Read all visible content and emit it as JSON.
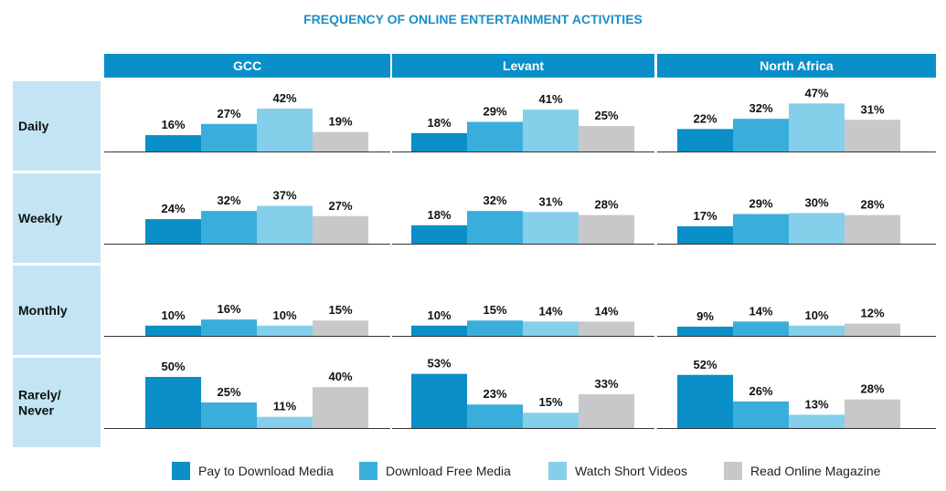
{
  "chart_data": {
    "type": "bar",
    "title": "FREQUENCY OF ONLINE ENTERTAINMENT ACTIVITIES",
    "regions": [
      "GCC",
      "Levant",
      "North Africa"
    ],
    "frequencies": [
      "Daily",
      "Weekly",
      "Monthly",
      "Rarely/ Never"
    ],
    "series": [
      {
        "name": "Pay to Download Media",
        "color": "#0a8fc8"
      },
      {
        "name": "Download Free Media",
        "color": "#3aaedb"
      },
      {
        "name": "Watch Short Videos",
        "color": "#85cfeb"
      },
      {
        "name": "Read Online Magazine",
        "color": "#c8c8ca"
      }
    ],
    "values": [
      [
        [
          16,
          27,
          42,
          19
        ],
        [
          18,
          29,
          41,
          25
        ],
        [
          22,
          32,
          47,
          31
        ]
      ],
      [
        [
          24,
          32,
          37,
          27
        ],
        [
          18,
          32,
          31,
          28
        ],
        [
          17,
          29,
          30,
          28
        ]
      ],
      [
        [
          10,
          16,
          10,
          15
        ],
        [
          10,
          15,
          14,
          14
        ],
        [
          9,
          14,
          10,
          12
        ]
      ],
      [
        [
          50,
          25,
          11,
          40
        ],
        [
          53,
          23,
          15,
          33
        ],
        [
          52,
          26,
          13,
          28
        ]
      ]
    ],
    "value_suffix": "%",
    "colors": {
      "header_bg": "#0a8fc8",
      "row_label_bg": "#c2e4f3",
      "title": "#1a8fc9"
    }
  }
}
